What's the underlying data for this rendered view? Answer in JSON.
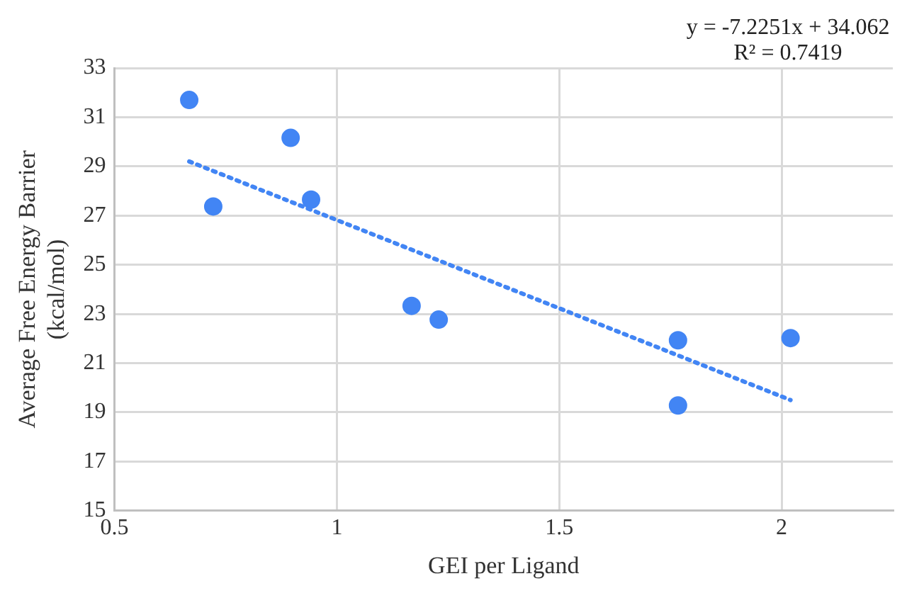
{
  "chart_data": {
    "type": "scatter",
    "xlabel": "GEI per Ligand",
    "ylabel": "Average Free Energy Barrier (kcal/mol)",
    "annotations": [
      "y = -7.2251x + 34.062",
      "R² = 0.7419"
    ],
    "series": [
      {
        "type": "scatter",
        "color": "#4285f4",
        "marker": "circle",
        "x": [
          0.668,
          0.896,
          0.722,
          0.942,
          1.168,
          1.229,
          1.767,
          1.767,
          2.02
        ],
        "values": [
          31.7,
          30.16,
          27.37,
          27.65,
          23.33,
          22.77,
          21.93,
          19.28,
          22.02
        ]
      },
      {
        "type": "line",
        "color": "#4285f4",
        "marker": "none",
        "line_style": "dotted",
        "x": [
          0.668,
          2.02
        ],
        "values": [
          29.2,
          19.5
        ]
      }
    ],
    "xlim": [
      0.5,
      2.25
    ],
    "xticks": [
      0.5,
      1,
      1.5,
      2
    ],
    "ylim": [
      15,
      33
    ],
    "yticks": [
      15,
      17,
      19,
      21,
      23,
      25,
      27,
      29,
      31,
      33
    ],
    "grid": true,
    "legend": false
  }
}
